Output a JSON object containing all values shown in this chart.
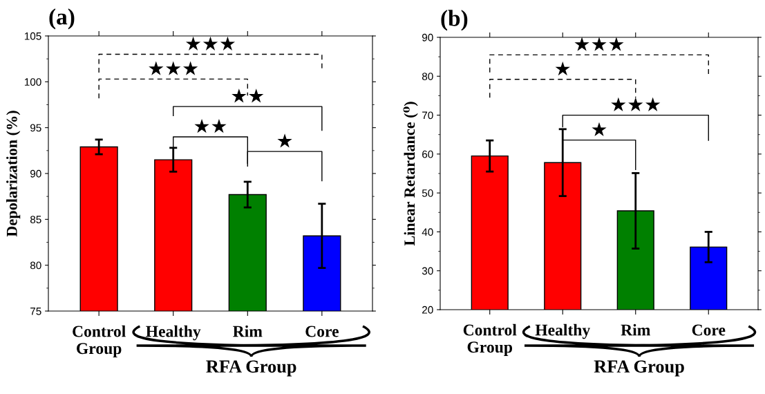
{
  "chart_data": [
    {
      "type": "bar",
      "title": "(a)",
      "ylabel": "Depolarization (%)",
      "categories": [
        "Control\nGroup",
        "Healthy",
        "Rim",
        "Core"
      ],
      "values": [
        92.9,
        91.5,
        87.7,
        83.2
      ],
      "errors": [
        0.8,
        1.3,
        1.4,
        3.5
      ],
      "colors": [
        "#ff0000",
        "#ff0000",
        "#008000",
        "#0000ff"
      ],
      "ylim": [
        75,
        105
      ],
      "yticks": [
        75,
        80,
        85,
        90,
        95,
        100,
        105
      ],
      "grid": false,
      "legend": false,
      "annotations": [
        "★★★",
        "★★★",
        "★★",
        "★★",
        "★",
        "RFA Group"
      ]
    },
    {
      "type": "bar",
      "title": "(b)",
      "ylabel": "Linear Retardance (⁰)",
      "categories": [
        "Control\nGroup",
        "Healthy",
        "Rim",
        "Core"
      ],
      "values": [
        59.5,
        57.8,
        45.4,
        36.1
      ],
      "errors": [
        4.0,
        8.6,
        9.7,
        3.9
      ],
      "colors": [
        "#ff0000",
        "#ff0000",
        "#008000",
        "#0000ff"
      ],
      "ylim": [
        20,
        90
      ],
      "yticks": [
        20,
        30,
        40,
        50,
        60,
        70,
        80,
        90
      ],
      "grid": false,
      "legend": false,
      "annotations": [
        "★★★",
        "★",
        "★★★",
        "★",
        "RFA Group"
      ]
    }
  ]
}
